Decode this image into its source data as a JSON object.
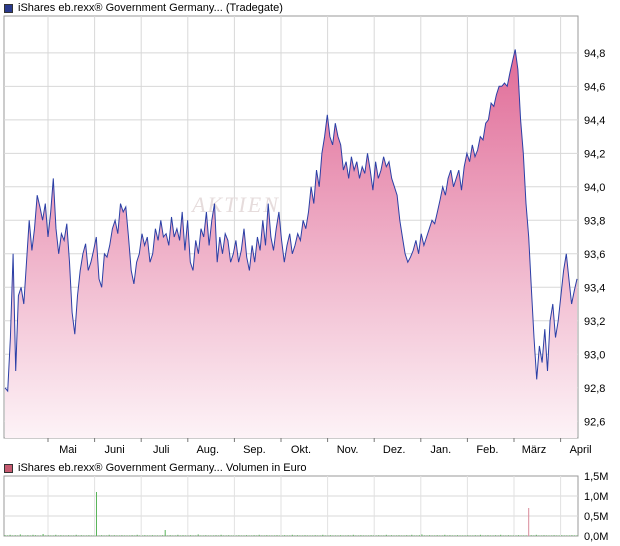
{
  "chart_data": [
    {
      "type": "area",
      "legend": {
        "label": "iShares eb.rexx® Government Germany... (Tradegate)",
        "color": "#2a3a8c"
      },
      "watermark": "AKTIEN",
      "line_color": "#2b3fa6",
      "fill_top_color": "#e06b97",
      "fill_bottom_color": "#fdf3f7",
      "grid": true,
      "ylim": [
        92.5,
        95.02
      ],
      "y_ticks": [
        "94,8",
        "94,6",
        "94,4",
        "94,2",
        "94,0",
        "93,8",
        "93,6",
        "93,4",
        "93,2",
        "93,0",
        "92,8",
        "92,6"
      ],
      "y_tick_values": [
        94.8,
        94.6,
        94.4,
        94.2,
        94.0,
        93.8,
        93.6,
        93.4,
        93.2,
        93.0,
        92.8,
        92.6
      ],
      "x_ticks": [
        "Mai",
        "Juni",
        "Juli",
        "Aug.",
        "Sep.",
        "Okt.",
        "Nov.",
        "Dez.",
        "Jan.",
        "Feb.",
        "März",
        "April"
      ],
      "series": [
        {
          "values": [
            92.8,
            92.78,
            93.1,
            93.6,
            92.9,
            93.35,
            93.4,
            93.3,
            93.55,
            93.8,
            93.62,
            93.75,
            93.95,
            93.88,
            93.8,
            93.9,
            93.7,
            93.85,
            94.05,
            93.75,
            93.6,
            93.72,
            93.68,
            93.78,
            93.55,
            93.25,
            93.12,
            93.35,
            93.5,
            93.6,
            93.66,
            93.5,
            93.55,
            93.62,
            93.7,
            93.45,
            93.4,
            93.6,
            93.58,
            93.65,
            93.75,
            93.8,
            93.72,
            93.9,
            93.85,
            93.88,
            93.7,
            93.5,
            93.42,
            93.55,
            93.6,
            93.72,
            93.65,
            93.7,
            93.55,
            93.6,
            93.75,
            93.68,
            93.8,
            93.7,
            93.72,
            93.65,
            93.82,
            93.7,
            93.75,
            93.68,
            93.85,
            93.62,
            93.8,
            93.55,
            93.5,
            93.68,
            93.6,
            93.75,
            93.7,
            93.85,
            93.65,
            93.8,
            93.9,
            93.55,
            93.7,
            93.6,
            93.72,
            93.68,
            93.55,
            93.6,
            93.68,
            93.55,
            93.62,
            93.75,
            93.58,
            93.5,
            93.65,
            93.55,
            93.7,
            93.62,
            93.8,
            93.65,
            93.9,
            93.7,
            93.62,
            93.75,
            93.85,
            93.68,
            93.55,
            93.65,
            93.72,
            93.6,
            93.65,
            93.72,
            93.68,
            93.8,
            93.75,
            93.85,
            94.0,
            93.9,
            94.1,
            94.0,
            94.2,
            94.3,
            94.43,
            94.3,
            94.25,
            94.38,
            94.3,
            94.25,
            94.1,
            94.15,
            94.05,
            94.18,
            94.1,
            94.15,
            94.05,
            94.12,
            94.08,
            94.2,
            94.1,
            93.98,
            94.15,
            94.05,
            94.1,
            94.18,
            94.12,
            94.15,
            94.05,
            94.0,
            93.95,
            93.8,
            93.7,
            93.6,
            93.55,
            93.58,
            93.62,
            93.68,
            93.6,
            93.72,
            93.65,
            93.7,
            93.75,
            93.8,
            93.78,
            93.85,
            93.92,
            94.0,
            93.95,
            94.05,
            94.1,
            94.0,
            94.05,
            94.1,
            93.98,
            94.12,
            94.2,
            94.15,
            94.25,
            94.18,
            94.22,
            94.3,
            94.28,
            94.38,
            94.4,
            94.5,
            94.48,
            94.55,
            94.6,
            94.6,
            94.62,
            94.6,
            94.68,
            94.75,
            94.82,
            94.7,
            94.4,
            94.2,
            93.9,
            93.7,
            93.4,
            93.1,
            92.85,
            93.05,
            92.95,
            93.15,
            92.9,
            93.2,
            93.3,
            93.1,
            93.2,
            93.35,
            93.5,
            93.6,
            93.45,
            93.3,
            93.38,
            93.45
          ]
        }
      ]
    },
    {
      "type": "bar",
      "legend": {
        "label": "iShares eb.rexx® Government Germany... Volumen in Euro",
        "color": "#c65a70"
      },
      "grid": true,
      "ylim": [
        0,
        1.5
      ],
      "y_ticks": [
        "1,5M",
        "1,0M",
        "0,5M",
        "0,0M"
      ],
      "y_tick_values": [
        1.5,
        1.0,
        0.5,
        0.0
      ],
      "unit": "Mio. EUR",
      "series": [
        {
          "values": [
            0.02,
            0.01,
            0.03,
            0.0,
            0.02,
            0.01,
            0.04,
            0.01,
            0.0,
            0.02,
            0.01,
            0.03,
            0.02,
            0.0,
            0.01,
            0.05,
            0.01,
            0.02,
            0.0,
            0.01,
            0.03,
            0.01,
            0.02,
            0.0,
            0.01,
            0.02,
            0.01,
            0.0,
            0.03,
            0.01,
            0.02,
            0.01,
            0.0,
            0.02,
            0.01,
            0.01,
            1.1,
            0.01,
            0.02,
            0.0,
            0.01,
            0.03,
            0.01,
            0.02,
            0.01,
            0.0,
            0.02,
            0.01,
            0.0,
            0.01,
            0.02,
            0.01,
            0.03,
            0.0,
            0.01,
            0.02,
            0.01,
            0.0,
            0.02,
            0.01,
            0.01,
            0.0,
            0.02,
            0.15,
            0.01,
            0.02,
            0.0,
            0.01,
            0.03,
            0.01,
            0.02,
            0.0,
            0.01,
            0.02,
            0.0,
            0.01,
            0.04,
            0.01,
            0.0,
            0.02,
            0.01,
            0.01,
            0.0,
            0.02,
            0.01,
            0.03,
            0.0,
            0.01,
            0.02,
            0.01,
            0.0,
            0.01,
            0.02,
            0.01,
            0.0,
            0.02,
            0.01,
            0.0,
            0.02,
            0.01,
            0.03,
            0.0,
            0.01,
            0.02,
            0.01,
            0.0,
            0.01,
            0.02,
            0.0,
            0.01,
            0.02,
            0.01,
            0.0,
            0.03,
            0.01,
            0.02,
            0.0,
            0.01,
            0.02,
            0.01,
            0.0,
            0.01,
            0.02,
            0.0,
            0.01,
            0.03,
            0.01,
            0.0,
            0.02,
            0.01,
            0.0,
            0.01,
            0.02,
            0.01,
            0.0,
            0.02,
            0.01,
            0.03,
            0.0,
            0.01,
            0.02,
            0.01,
            0.0,
            0.01,
            0.02,
            0.0,
            0.01,
            0.02,
            0.01,
            0.0,
            0.03,
            0.01,
            0.02,
            0.0,
            0.01,
            0.02,
            0.01,
            0.0,
            0.02,
            0.01,
            0.03,
            0.0,
            0.01,
            0.02,
            0.04,
            0.0,
            0.01,
            0.02,
            0.01,
            0.0,
            0.02,
            0.01,
            0.0,
            0.03,
            0.01,
            0.02,
            0.0,
            0.01,
            0.02,
            0.01,
            0.0,
            0.01,
            0.02,
            0.01,
            0.0,
            0.02,
            0.01,
            0.03,
            0.0,
            0.01,
            0.02,
            0.01,
            0.0,
            0.02,
            0.01,
            0.03,
            0.0,
            0.01,
            0.02,
            0.01,
            0.0,
            0.01,
            0.02,
            0.01,
            0.0,
            0.01,
            0.7,
            0.02,
            0.01,
            0.03,
            0.0,
            0.01,
            0.02,
            0.01,
            0.0,
            0.01,
            0.02,
            0.0,
            0.01,
            0.02,
            0.01,
            0.0,
            0.01,
            0.02,
            0.0,
            0.01
          ]
        }
      ]
    }
  ]
}
